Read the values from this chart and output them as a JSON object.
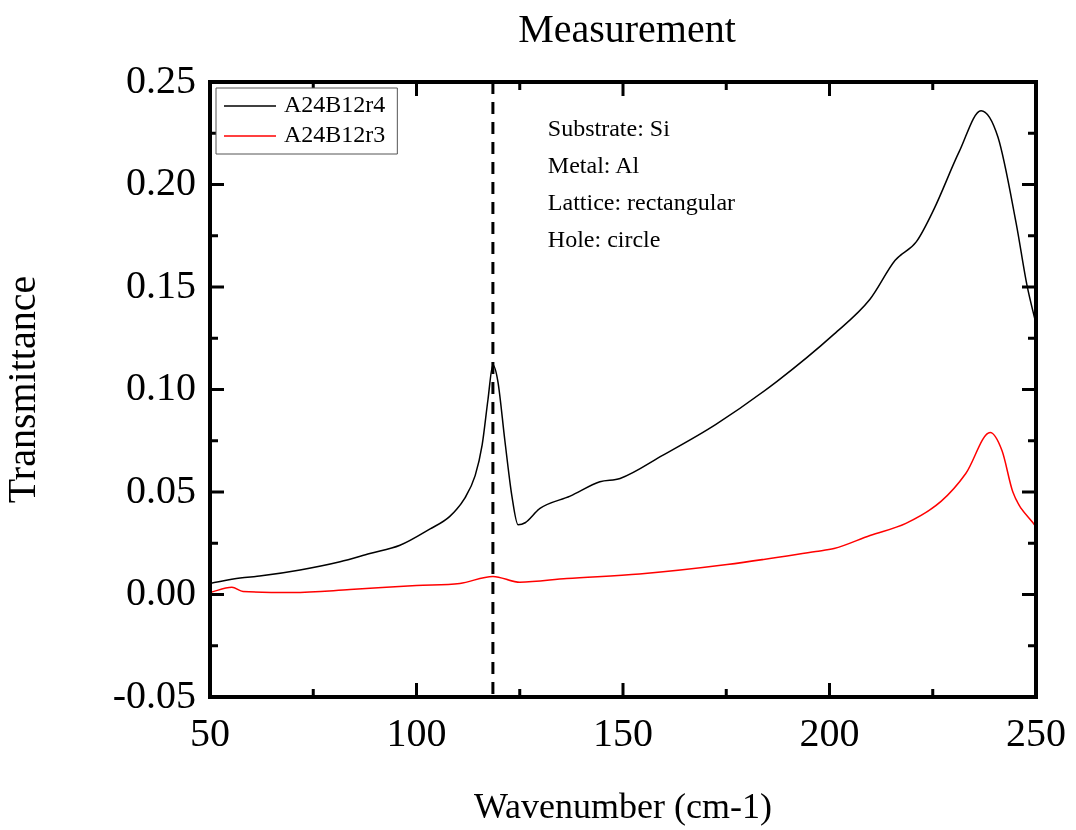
{
  "chart_data": {
    "type": "line",
    "title": "Measurement",
    "xlabel": "Wavenumber (cm-1)",
    "ylabel": "Transmittance",
    "xlim": [
      50,
      250
    ],
    "xticks": [
      50,
      {
        "value": 75,
        "label": null
      },
      100,
      {
        "value": 125,
        "label": null
      },
      150,
      {
        "value": 175,
        "label": null
      },
      200,
      {
        "value": 225,
        "label": null
      },
      250
    ],
    "ylim": [
      -0.05,
      0.25
    ],
    "yticks": [
      {
        "value": -0.05,
        "label": "-0.05"
      },
      {
        "value": -0.025,
        "label": null
      },
      {
        "value": 0,
        "label": "0.00"
      },
      {
        "value": 0.025,
        "label": null
      },
      {
        "value": 0.05,
        "label": "0.05"
      },
      {
        "value": 0.075,
        "label": null
      },
      {
        "value": 0.1,
        "label": "0.10"
      },
      {
        "value": 0.125,
        "label": null
      },
      {
        "value": 0.15,
        "label": "0.15"
      },
      {
        "value": 0.175,
        "label": null
      },
      {
        "value": 0.2,
        "label": "0.20"
      },
      {
        "value": 0.225,
        "label": null
      },
      {
        "value": 0.25,
        "label": "0.25"
      }
    ],
    "grid": false,
    "legend": "top left",
    "marker": "none",
    "line_style": "solid",
    "series": [
      {
        "name": "A24B12r4",
        "color": "#000000",
        "x": [
          50,
          57.3,
          62,
          71.8,
          81.5,
          88.7,
          96,
          103.3,
          108,
          111.7,
          114.2,
          115.9,
          117.3,
          118.5,
          119.7,
          121.4,
          123.1,
          124.6,
          126.3,
          129.9,
          137.2,
          144.4,
          149.3,
          159.7,
          172.5,
          187.3,
          201.1,
          209.8,
          215.9,
          221,
          225.3,
          231.4,
          236.7,
          240.8,
          245.2,
          247.8,
          250
        ],
        "values": [
          0.0054,
          0.008,
          0.009,
          0.012,
          0.016,
          0.02,
          0.024,
          0.032,
          0.038,
          0.047,
          0.058,
          0.073,
          0.095,
          0.112,
          0.104,
          0.075,
          0.048,
          0.034,
          0.035,
          0.042,
          0.048,
          0.055,
          0.0566,
          0.068,
          0.083,
          0.104,
          0.127,
          0.144,
          0.163,
          0.172,
          0.188,
          0.216,
          0.236,
          0.223,
          0.181,
          0.151,
          0.132
        ]
      },
      {
        "name": "A24B12r3",
        "color": "#ff0000",
        "x": [
          50,
          55.3,
          58,
          70,
          83.9,
          100,
          110.5,
          118.5,
          125,
          136.4,
          154,
          175.2,
          196.7,
          201.1,
          209.8,
          218.5,
          227,
          233,
          238.9,
          241.8,
          244.4,
          250
        ],
        "values": [
          0.001,
          0.0035,
          0.0015,
          0.001,
          0.0024,
          0.0044,
          0.0054,
          0.0088,
          0.006,
          0.0078,
          0.01,
          0.0146,
          0.021,
          0.0224,
          0.0288,
          0.0347,
          0.0454,
          0.059,
          0.079,
          0.07,
          0.05,
          0.033
        ]
      }
    ],
    "ref_lines": [
      {
        "axis": "x",
        "value": 118.5,
        "color": "#000000",
        "line_style": "dashed"
      }
    ],
    "annotations": [
      "Substrate: Si",
      "Metal: Al",
      "Lattice: rectangular",
      "Hole: circle"
    ]
  }
}
